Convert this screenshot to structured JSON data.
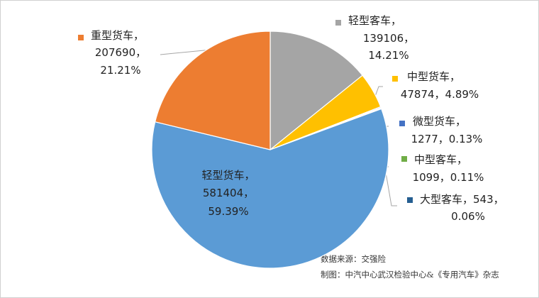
{
  "chart_data": {
    "type": "pie",
    "categories": [
      "轻型客车，",
      "中型货车，",
      "微型货车，",
      "中型客车，",
      "大型客车，",
      "轻型货车，",
      "重型货车，"
    ],
    "values": [
      139106,
      47874,
      1277,
      1099,
      543,
      581404,
      207690
    ],
    "value_labels": [
      "139106，",
      "47874，",
      "1277，",
      "1099，",
      "543，",
      "581404，",
      "207690，"
    ],
    "percent_labels": [
      "14.21%",
      "4.89%",
      "0.13%",
      "0.11%",
      "0.06%",
      "59.39%",
      "21.21%"
    ],
    "colors": [
      "#A5A5A5",
      "#FFC000",
      "#4472C4",
      "#70AD47",
      "#255E91",
      "#5B9BD5",
      "#ED7D31"
    ],
    "source": "数据来源：交强险",
    "credit": "制图：中汽中心武汉检验中心&《专用汽车》杂志"
  }
}
